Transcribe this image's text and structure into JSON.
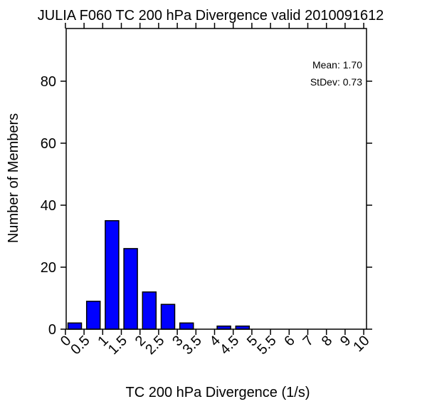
{
  "chart_data": {
    "type": "bar",
    "title": "JULIA F060 TC 200 hPa Divergence valid 2010091612",
    "xlabel": "TC 200 hPa Divergence (1/s)",
    "ylabel": "Number of Members",
    "bins": [
      {
        "from": 0.0,
        "to": 0.5,
        "count": 2
      },
      {
        "from": 0.5,
        "to": 1.0,
        "count": 9
      },
      {
        "from": 1.0,
        "to": 1.5,
        "count": 35
      },
      {
        "from": 1.5,
        "to": 2.0,
        "count": 26
      },
      {
        "from": 2.0,
        "to": 2.5,
        "count": 12
      },
      {
        "from": 2.5,
        "to": 3.0,
        "count": 8
      },
      {
        "from": 3.0,
        "to": 3.5,
        "count": 2
      },
      {
        "from": 3.5,
        "to": 4.0,
        "count": 0
      },
      {
        "from": 4.0,
        "to": 4.5,
        "count": 1
      },
      {
        "from": 4.5,
        "to": 5.0,
        "count": 1
      },
      {
        "from": 5.0,
        "to": 5.5,
        "count": 0
      },
      {
        "from": 5.5,
        "to": 6.0,
        "count": 0
      },
      {
        "from": 6.0,
        "to": 7.0,
        "count": 0
      },
      {
        "from": 7.0,
        "to": 8.0,
        "count": 0
      },
      {
        "from": 8.0,
        "to": 9.0,
        "count": 0
      },
      {
        "from": 9.0,
        "to": 10.0,
        "count": 0
      }
    ],
    "x_tick_labels": [
      "0",
      "0.5",
      "1",
      "1.5",
      "2",
      "2.5",
      "3",
      "3.5",
      "4",
      "4.5",
      "5",
      "5.5",
      "6",
      "7",
      "8",
      "9",
      "10"
    ],
    "y_ticks": [
      0,
      20,
      40,
      60,
      80
    ],
    "ylim": [
      0,
      97
    ],
    "bar_color": "#0000ff",
    "grid": false,
    "stats": {
      "mean_label": "Mean: 1.70",
      "stdev_label": "StDev: 0.73"
    }
  }
}
